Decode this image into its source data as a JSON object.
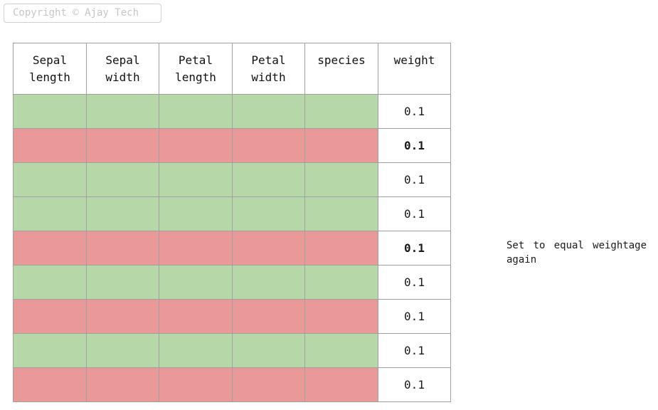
{
  "copyright": "Copyright © Ajay Tech",
  "colors": {
    "correct_row": "#b6d7a8",
    "incorrect_row": "#ea9999"
  },
  "table": {
    "headers": [
      "Sepal\nlength",
      "Sepal\nwidth",
      "Petal\nlength",
      "Petal\nwidth",
      "species",
      "weight"
    ],
    "rows": [
      {
        "status": "correct",
        "weight": "0.1",
        "bold": false
      },
      {
        "status": "incorrect",
        "weight": "0.1",
        "bold": true
      },
      {
        "status": "correct",
        "weight": "0.1",
        "bold": false
      },
      {
        "status": "correct",
        "weight": "0.1",
        "bold": false
      },
      {
        "status": "incorrect",
        "weight": "0.1",
        "bold": true
      },
      {
        "status": "correct",
        "weight": "0.1",
        "bold": false
      },
      {
        "status": "incorrect",
        "weight": "0.1",
        "bold": false
      },
      {
        "status": "correct",
        "weight": "0.1",
        "bold": false
      },
      {
        "status": "incorrect",
        "weight": "0.1",
        "bold": false
      }
    ]
  },
  "note": "Set to equal weightage again"
}
